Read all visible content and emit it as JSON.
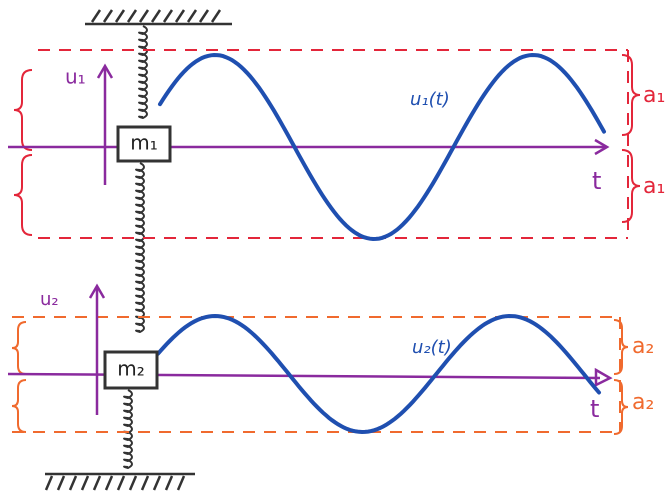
{
  "oscillator_1": {
    "mass": "m₁",
    "displacement": "u₁",
    "curve": "u₁(t)",
    "amplitude_upper": "a₁",
    "amplitude_lower": "a₁",
    "time_axis": "t"
  },
  "oscillator_2": {
    "mass": "m₂",
    "displacement": "u₂",
    "curve": "u₂(t)",
    "amplitude_upper": "a₂",
    "amplitude_lower": "a₂",
    "time_axis": "t"
  }
}
